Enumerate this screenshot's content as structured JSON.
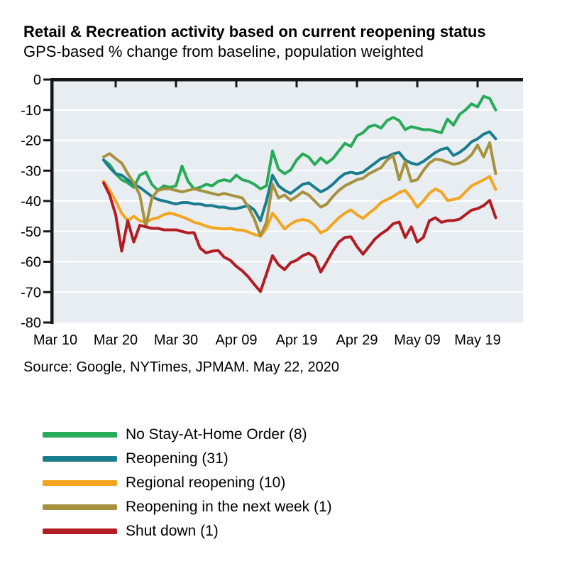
{
  "header": {
    "title": "Retail & Recreation activity based on current reopening status",
    "subtitle": "GPS-based % change from baseline, population weighted"
  },
  "source_note": "Source: Google, NYTimes, JPMAM. May 22, 2020",
  "chart_data": {
    "type": "line",
    "title": "Retail & Recreation activity based on current reopening status",
    "subtitle": "GPS-based % change from baseline, population weighted",
    "xlabel": "",
    "ylabel": "",
    "ylim": [
      -80,
      0
    ],
    "y_ticks": [
      0,
      -10,
      -20,
      -30,
      -40,
      -50,
      -60,
      -70,
      -80
    ],
    "x_tick_labels": [
      "Mar 10",
      "Mar 20",
      "Mar 30",
      "Apr 09",
      "Apr 19",
      "Apr 29",
      "May 09",
      "May 19"
    ],
    "grid": true,
    "legend_position": "below-chart",
    "plot_background": "#e8edf2",
    "gridline_color": "#ffffff",
    "axis_color": "#161616",
    "dates": [
      "Mar 18",
      "Mar 19",
      "Mar 20",
      "Mar 21",
      "Mar 22",
      "Mar 23",
      "Mar 24",
      "Mar 25",
      "Mar 26",
      "Mar 27",
      "Mar 28",
      "Mar 29",
      "Mar 30",
      "Mar 31",
      "Apr 1",
      "Apr 2",
      "Apr 3",
      "Apr 4",
      "Apr 5",
      "Apr 6",
      "Apr 7",
      "Apr 8",
      "Apr 9",
      "Apr 10",
      "Apr 11",
      "Apr 12",
      "Apr 13",
      "Apr 14",
      "Apr 15",
      "Apr 16",
      "Apr 17",
      "Apr 18",
      "Apr 19",
      "Apr 20",
      "Apr 21",
      "Apr 22",
      "Apr 23",
      "Apr 24",
      "Apr 25",
      "Apr 26",
      "Apr 27",
      "Apr 28",
      "Apr 29",
      "Apr 30",
      "May 1",
      "May 2",
      "May 3",
      "May 4",
      "May 5",
      "May 6",
      "May 7",
      "May 8",
      "May 9",
      "May 10",
      "May 11",
      "May 12",
      "May 13",
      "May 14",
      "May 15",
      "May 16",
      "May 17",
      "May 18",
      "May 19",
      "May 20",
      "May 21",
      "May 22"
    ],
    "series": [
      {
        "name": "No Stay-At-Home Order (8)",
        "color": "#27ab58",
        "values": [
          -26.5,
          -28,
          -31,
          -33,
          -34,
          -35.5,
          -31.5,
          -30.5,
          -34.5,
          -36.5,
          -35,
          -35.5,
          -35,
          -28.5,
          -33.5,
          -36,
          -35.5,
          -34.5,
          -35,
          -33.5,
          -33,
          -33.5,
          -31.5,
          -33,
          -33.5,
          -34.5,
          -36,
          -35,
          -23.5,
          -29.5,
          -31,
          -29.8,
          -26.5,
          -24.5,
          -25.5,
          -28,
          -25.8,
          -27.5,
          -26,
          -23.5,
          -21,
          -22,
          -18.5,
          -17.5,
          -15.5,
          -15,
          -16,
          -13.5,
          -12.5,
          -13.5,
          -16.5,
          -15.5,
          -16,
          -16.5,
          -16.5,
          -17,
          -17.5,
          -13,
          -15,
          -11.5,
          -10,
          -8,
          -9,
          -5.5,
          -6.2,
          -10
        ]
      },
      {
        "name": "Reopening (31)",
        "color": "#1a7d8e",
        "values": [
          -26.5,
          -29,
          -31,
          -31.5,
          -33,
          -34.5,
          -35.5,
          -37,
          -38.5,
          -39.5,
          -40,
          -40.5,
          -41,
          -40.5,
          -40.5,
          -41,
          -41,
          -41.5,
          -41.5,
          -42,
          -42,
          -42.5,
          -42.5,
          -42,
          -41.5,
          -43,
          -46.5,
          -40,
          -31.5,
          -35,
          -36.5,
          -37.5,
          -36,
          -34.5,
          -34,
          -35.5,
          -37,
          -36,
          -34.5,
          -32.5,
          -31,
          -30.5,
          -31,
          -30.5,
          -29,
          -27.5,
          -26,
          -25.5,
          -24.5,
          -24,
          -26.5,
          -27.5,
          -28,
          -27,
          -25.5,
          -24,
          -23,
          -22.5,
          -25,
          -24,
          -22.5,
          -20.5,
          -19.5,
          -18,
          -17.2,
          -19.5
        ]
      },
      {
        "name": "Regional reopening (10)",
        "color": "#f3a51f",
        "values": [
          -33.5,
          -36.5,
          -40,
          -44,
          -46.5,
          -45,
          -46.5,
          -47,
          -46,
          -45.5,
          -44.5,
          -44,
          -44.5,
          -45.2,
          -46,
          -47,
          -47.5,
          -48.3,
          -48.8,
          -49,
          -49.2,
          -49,
          -49.5,
          -49.6,
          -50.2,
          -51,
          -51.6,
          -49,
          -44,
          -46.5,
          -49.2,
          -47.6,
          -46.5,
          -46.1,
          -46.5,
          -48,
          -50.5,
          -49.5,
          -47.5,
          -45.5,
          -44,
          -42.9,
          -44.5,
          -45.7,
          -44,
          -42.5,
          -40.5,
          -39.5,
          -38.5,
          -37.2,
          -36.5,
          -39,
          -42,
          -40,
          -37.5,
          -36,
          -37,
          -39.8,
          -39.5,
          -39,
          -37,
          -35,
          -34,
          -33,
          -31.9,
          -36.2
        ]
      },
      {
        "name": "Reopening in the next week (1)",
        "color": "#a6913e",
        "values": [
          -25.5,
          -24.4,
          -26,
          -27.5,
          -31,
          -34,
          -38,
          -48.5,
          -39,
          -36.5,
          -36,
          -36,
          -36.5,
          -37,
          -36.5,
          -36,
          -36.5,
          -37,
          -37.5,
          -38,
          -37.5,
          -38,
          -38.5,
          -39,
          -42,
          -46,
          -51.5,
          -47,
          -34.5,
          -39,
          -38,
          -39.8,
          -38.5,
          -37,
          -38,
          -40,
          -42,
          -41,
          -38.5,
          -36.5,
          -35,
          -34,
          -33,
          -32.5,
          -31,
          -30,
          -29,
          -26.5,
          -25,
          -33,
          -27,
          -33.5,
          -33,
          -30,
          -27.5,
          -26.2,
          -26.5,
          -27.2,
          -27.9,
          -27.5,
          -26.5,
          -24.8,
          -21.6,
          -25.5,
          -20.8,
          -31
        ]
      },
      {
        "name": "Shut down (1)",
        "color": "#b11d22",
        "values": [
          -34,
          -38,
          -44.5,
          -56.5,
          -46.5,
          -53.5,
          -48,
          -48.5,
          -49,
          -49,
          -49.5,
          -49.5,
          -49.5,
          -50,
          -50.5,
          -50.4,
          -55.5,
          -57.1,
          -56.5,
          -56.3,
          -58.5,
          -59.5,
          -61.5,
          -63,
          -65,
          -67.5,
          -69.8,
          -64,
          -58,
          -61,
          -62.6,
          -60.3,
          -59.5,
          -58,
          -57.2,
          -58.5,
          -63.4,
          -60,
          -56.5,
          -53.5,
          -52,
          -51.8,
          -55,
          -57.5,
          -55,
          -52.5,
          -50.8,
          -49.5,
          -47.5,
          -46.9,
          -52,
          -48.5,
          -53.5,
          -52,
          -46.5,
          -45.5,
          -47,
          -46.5,
          -46.4,
          -46,
          -44.5,
          -43,
          -42.5,
          -41.5,
          -39.8,
          -45.5
        ]
      }
    ]
  }
}
